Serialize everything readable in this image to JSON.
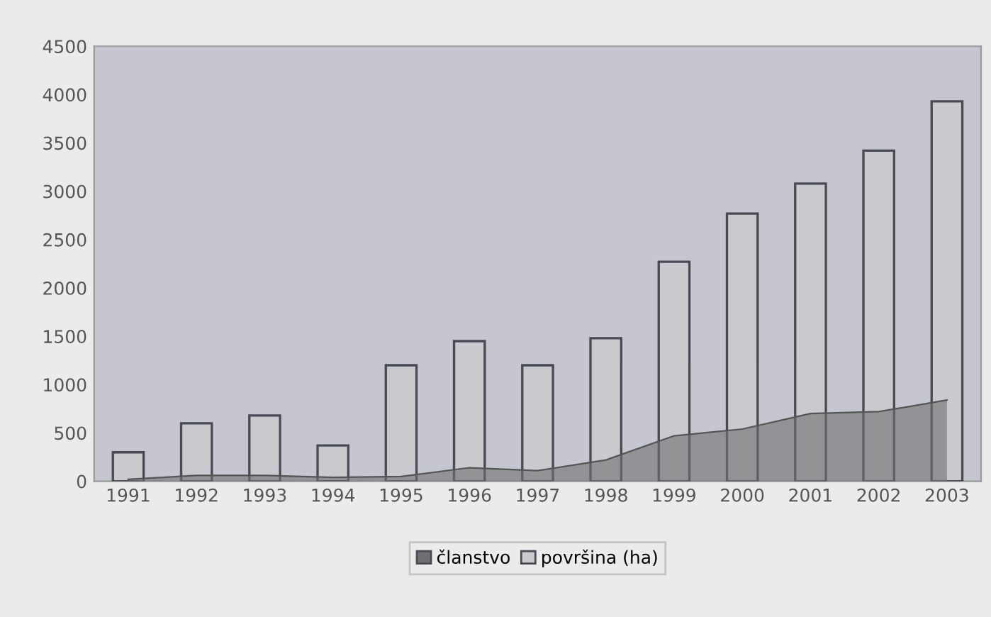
{
  "chart_data": {
    "type": "bar",
    "categories": [
      "1991",
      "1992",
      "1993",
      "1994",
      "1995",
      "1996",
      "1997",
      "1998",
      "1999",
      "2000",
      "2001",
      "2002",
      "2003"
    ],
    "series": [
      {
        "name": "članstvo",
        "type": "area",
        "color": "#6f6f72",
        "values": [
          20,
          60,
          60,
          40,
          50,
          140,
          110,
          220,
          470,
          540,
          700,
          720,
          840
        ]
      },
      {
        "name": "površina (ha)",
        "color": "#c9c9ce",
        "values": [
          300,
          600,
          680,
          370,
          1200,
          1450,
          1200,
          1480,
          2270,
          2770,
          3080,
          3420,
          3930
        ]
      }
    ],
    "ylim": [
      0,
      4500
    ],
    "yticks": [
      0,
      500,
      1000,
      1500,
      2000,
      2500,
      3000,
      3500,
      4000,
      4500
    ],
    "grid": false,
    "legend": "bottom"
  }
}
